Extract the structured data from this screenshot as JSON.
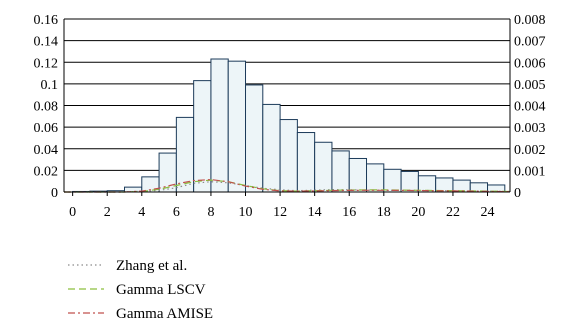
{
  "chart_data": {
    "type": "bar",
    "x_ticks": [
      "0",
      "2",
      "4",
      "6",
      "8",
      "10",
      "12",
      "14",
      "16",
      "18",
      "20",
      "22",
      "24"
    ],
    "y_left_ticks": [
      "0",
      "0.02",
      "0.04",
      "0.06",
      "0.08",
      "0.1",
      "0.12",
      "0.14",
      "0.16"
    ],
    "y_right_ticks": [
      "0",
      "0.001",
      "0.002",
      "0.003",
      "0.004",
      "0.005",
      "0.006",
      "0.007",
      "0.008"
    ],
    "xlim": [
      -0.5,
      25.3
    ],
    "ylim_left": [
      0,
      0.16
    ],
    "ylim_right": [
      0,
      0.008
    ],
    "grid": "horizontal",
    "bars": {
      "bin_starts": [
        0,
        1,
        2,
        3,
        4,
        5,
        6,
        7,
        8,
        9,
        10,
        11,
        12,
        13,
        14,
        15,
        16,
        17,
        18,
        19,
        20,
        21,
        22,
        23,
        24
      ],
      "bin_width": 1,
      "values": [
        0.0005,
        0.0008,
        0.0012,
        0.0045,
        0.014,
        0.036,
        0.069,
        0.103,
        0.123,
        0.121,
        0.099,
        0.081,
        0.067,
        0.055,
        0.046,
        0.038,
        0.031,
        0.026,
        0.021,
        0.019,
        0.015,
        0.013,
        0.011,
        0.0085,
        0.0065
      ],
      "fill": "#edf5f8",
      "stroke": "#1c3b5a"
    },
    "series": [
      {
        "name": "Zhang et al.",
        "axis": "left",
        "style": "dotted",
        "color": "#8a8a8a",
        "x": [
          -0.5,
          3,
          5,
          6,
          7,
          8,
          9,
          10,
          11,
          12,
          13,
          14,
          15,
          16,
          17,
          18,
          19,
          20,
          21,
          22,
          23,
          24,
          25.3
        ],
        "y": [
          0,
          0,
          0.0015,
          0.004,
          0.008,
          0.0095,
          0.0085,
          0.006,
          0.0035,
          0.002,
          0.0012,
          0.0018,
          0.0022,
          0.002,
          0.0018,
          0.0017,
          0.0016,
          0.0015,
          0.0013,
          0.0011,
          0.0009,
          0.0007,
          0.0005
        ]
      },
      {
        "name": "Gamma LSCV",
        "axis": "left",
        "style": "dashed",
        "color": "#8cbf3f",
        "x": [
          -0.5,
          3,
          4,
          5,
          6,
          7,
          8,
          9,
          10,
          11,
          12,
          13,
          14,
          15,
          16,
          17,
          18,
          19,
          20,
          21,
          22,
          23,
          24,
          25.3
        ],
        "y": [
          0,
          0,
          0.0005,
          0.0025,
          0.006,
          0.0095,
          0.011,
          0.0095,
          0.006,
          0.003,
          0.0012,
          0.0008,
          0.0012,
          0.0016,
          0.0018,
          0.0019,
          0.0019,
          0.0018,
          0.0016,
          0.0014,
          0.0012,
          0.001,
          0.0008,
          0.0005
        ]
      },
      {
        "name": "Gamma AMISE",
        "axis": "left",
        "style": "dash-dot",
        "color": "#c0504d",
        "x": [
          -0.5,
          3,
          4,
          5,
          6,
          7,
          8,
          9,
          10,
          11,
          12,
          13,
          14,
          15,
          16,
          17,
          18,
          19,
          20,
          21,
          22,
          23,
          24,
          25.3
        ],
        "y": [
          0,
          0,
          0.0008,
          0.0035,
          0.0075,
          0.0105,
          0.0115,
          0.0095,
          0.0055,
          0.0025,
          0.001,
          0.0008,
          0.001,
          0.0013,
          0.0015,
          0.0016,
          0.0016,
          0.0015,
          0.0014,
          0.0012,
          0.001,
          0.0008,
          0.0006,
          0.0004
        ]
      }
    ],
    "legend": {
      "placement": "bottom-left",
      "entries": [
        "Zhang et al.",
        "Gamma LSCV",
        "Gamma AMISE"
      ]
    }
  }
}
